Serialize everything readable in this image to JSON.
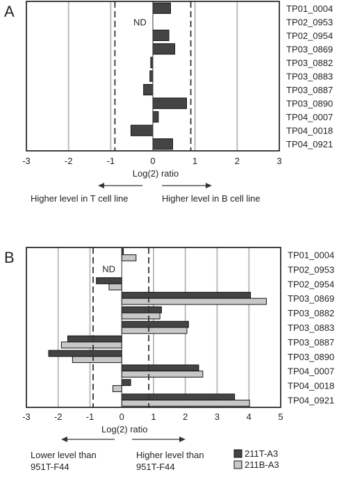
{
  "chart_data": [
    {
      "type": "bar",
      "orientation": "horizontal",
      "panel_label": "A",
      "categories": [
        "TP01_0004",
        "TP02_0953",
        "TP02_0954",
        "TP03_0869",
        "TP03_0882",
        "TP03_0883",
        "TP03_0887",
        "TP03_0890",
        "TP04_0007",
        "TP04_0018",
        "TP04_0921"
      ],
      "values": [
        0.42,
        null,
        0.38,
        0.52,
        -0.05,
        -0.07,
        -0.22,
        0.8,
        0.13,
        -0.52,
        0.47
      ],
      "xlabel": "Log(2) ratio",
      "xlim": [
        -3,
        3
      ],
      "xticks": [
        "-3",
        "-2",
        "-1",
        "0",
        "1",
        "2",
        "3"
      ],
      "grid": true,
      "threshold_lines": [
        -0.9,
        0.9
      ],
      "missing_label": "ND",
      "annotations": {
        "left": "Higher level in T cell line",
        "right": "Higher level in B cell line"
      },
      "colors": {
        "bar": "#444444",
        "grid": "#bbbbbb"
      }
    },
    {
      "type": "bar",
      "orientation": "horizontal",
      "panel_label": "B",
      "categories": [
        "TP01_0004",
        "TP02_0953",
        "TP02_0954",
        "TP03_0869",
        "TP03_0882",
        "TP03_0883",
        "TP03_0887",
        "TP03_0890",
        "TP04_0007",
        "TP04_0018",
        "TP04_0921"
      ],
      "series": [
        {
          "name": "211T-A3",
          "color": "#444444",
          "values": [
            0.05,
            null,
            -0.8,
            4.05,
            1.25,
            2.1,
            -1.7,
            -2.3,
            2.42,
            0.28,
            3.55
          ]
        },
        {
          "name": "211B-A3",
          "color": "#c8c8c8",
          "values": [
            0.45,
            null,
            -0.4,
            4.55,
            1.2,
            2.05,
            -1.9,
            -1.55,
            2.55,
            -0.28,
            4.02
          ]
        }
      ],
      "xlabel": "Log(2) ratio",
      "xlim": [
        -3,
        5
      ],
      "xticks": [
        "-3",
        "-2",
        "-1",
        "0",
        "1",
        "2",
        "3",
        "4",
        "5"
      ],
      "grid": true,
      "threshold_lines": [
        -0.9,
        0.85
      ],
      "missing_label": "ND",
      "annotations": {
        "left": [
          "Lower level than",
          "951T-F44"
        ],
        "right": [
          "Higher level than",
          "951T-F44"
        ]
      },
      "legend": "bottom-right",
      "colors": {
        "grid": "#bbbbbb"
      }
    }
  ]
}
